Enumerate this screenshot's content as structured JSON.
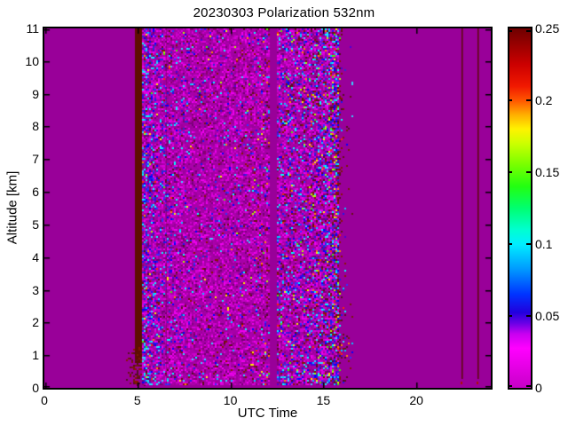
{
  "figure": {
    "title": "20230303 Polarization 532nm",
    "xlabel": "UTC Time",
    "ylabel": "Altitude [km]"
  },
  "chart_data": {
    "type": "heatmap",
    "title": "20230303 Polarization 532nm",
    "xlabel": "UTC Time",
    "ylabel": "Altitude [km]",
    "xlim": [
      0,
      24
    ],
    "ylim": [
      0,
      11
    ],
    "xticks": [
      0,
      5,
      10,
      15,
      20
    ],
    "xtick_labels": [
      "0",
      "5",
      "10",
      "15",
      "20"
    ],
    "yticks": [
      0,
      1,
      2,
      3,
      4,
      5,
      6,
      7,
      8,
      9,
      10,
      11
    ],
    "ytick_labels": [
      "0",
      "1",
      "2",
      "3",
      "4",
      "5",
      "6",
      "7",
      "8",
      "9",
      "10",
      "11"
    ],
    "grid": false,
    "background_value_color": "#990099",
    "colorbar": {
      "min": 0,
      "max": 0.25,
      "ticks": [
        0,
        0.05,
        0.1,
        0.15,
        0.2,
        0.25
      ],
      "tick_labels": [
        "0",
        "0.05",
        "0.1",
        "0.15",
        "0.2",
        "0.25"
      ],
      "position": "right",
      "stops": [
        {
          "p": 0.0,
          "c": "#c800c8"
        },
        {
          "p": 0.06,
          "c": "#e600e6"
        },
        {
          "p": 0.11,
          "c": "#ff00ff"
        },
        {
          "p": 0.15,
          "c": "#c800f0"
        },
        {
          "p": 0.18,
          "c": "#6a00e6"
        },
        {
          "p": 0.21,
          "c": "#2200dd"
        },
        {
          "p": 0.26,
          "c": "#0033ff"
        },
        {
          "p": 0.33,
          "c": "#0099ff"
        },
        {
          "p": 0.4,
          "c": "#00eeff"
        },
        {
          "p": 0.44,
          "c": "#00ffd0"
        },
        {
          "p": 0.5,
          "c": "#00ff70"
        },
        {
          "p": 0.56,
          "c": "#22ff11"
        },
        {
          "p": 0.62,
          "c": "#77ff00"
        },
        {
          "p": 0.68,
          "c": "#ccff00"
        },
        {
          "p": 0.72,
          "c": "#fff200"
        },
        {
          "p": 0.76,
          "c": "#ffae00"
        },
        {
          "p": 0.8,
          "c": "#ff5500"
        },
        {
          "p": 0.84,
          "c": "#f01800"
        },
        {
          "p": 0.9,
          "c": "#cc0000"
        },
        {
          "p": 1.0,
          "c": "#6e0000"
        }
      ]
    },
    "regions": [
      {
        "name": "calibration-stripe",
        "type": "solid",
        "t0": 4.85,
        "t1": 5.32,
        "alt0": 0.75,
        "alt1": 11,
        "color": "#5e0e02"
      },
      {
        "name": "stripe-base-speckle",
        "type": "speckle",
        "t0": 4.4,
        "t1": 5.6,
        "alt0": 0.1,
        "alt1": 1.5
      },
      {
        "name": "measurement-block-1",
        "type": "noise",
        "t0": 5.32,
        "t1": 12.07,
        "alt0": 0.12,
        "alt1": 11,
        "edgeL": 0.9,
        "edgeR": 0.8,
        "ampL": 0.3,
        "ampR": 0.05,
        "hotR": 0.012,
        "marR": 0.02
      },
      {
        "name": "measurement-block-2",
        "type": "noise",
        "t0": 12.55,
        "t1": 15.75,
        "alt0": 0.12,
        "alt1": 11,
        "edgeL": 0.8,
        "edgeR": 1.9,
        "ampL": 0.1,
        "ampR": 0.25,
        "hotR": 0.05,
        "marR": 0.09
      },
      {
        "name": "right-red-fringe",
        "type": "fringe",
        "t0": 15.75,
        "t1": 16.6,
        "alt0": 0.12,
        "alt1": 11
      },
      {
        "name": "inner-dark-column",
        "type": "vline",
        "t": 6.52,
        "alt0": 0.12,
        "alt1": 11,
        "color": "rgba(110,0,80,0.45)",
        "w": 1
      },
      {
        "name": "late-thin-line-1",
        "type": "vline",
        "t": 22.43,
        "alt0": 0.28,
        "alt1": 11,
        "color": "#5c0808",
        "w": 1.5,
        "endDot": true
      },
      {
        "name": "late-thin-line-2",
        "type": "vline",
        "t": 23.28,
        "alt0": 0.28,
        "alt1": 11,
        "color": "#5c0808",
        "w": 1.5,
        "endDot": true
      }
    ],
    "noise_palettes": {
      "blues": [
        "#1a1aee",
        "#3333ff",
        "#4a00d8",
        "#2b2bd4",
        "#0000ff"
      ],
      "cyans": [
        "#00c8ff",
        "#00ffff",
        "#33d6ff"
      ],
      "hots": [
        "#44ee00",
        "#ffee00",
        "#ff8800",
        "#ff2a00",
        "#aaff00"
      ],
      "maroons": [
        "#661111",
        "#7a1a05",
        "#550d20",
        "#8c1500"
      ],
      "brights": [
        "#c400c4",
        "#cc00cc",
        "#d900d9",
        "#ee00ee"
      ],
      "darks": [
        "#800080",
        "#730073",
        "#8a0070"
      ],
      "bases": [
        "#a300a3",
        "#ab00ab",
        "#9c009c",
        "#a800a8"
      ]
    }
  }
}
